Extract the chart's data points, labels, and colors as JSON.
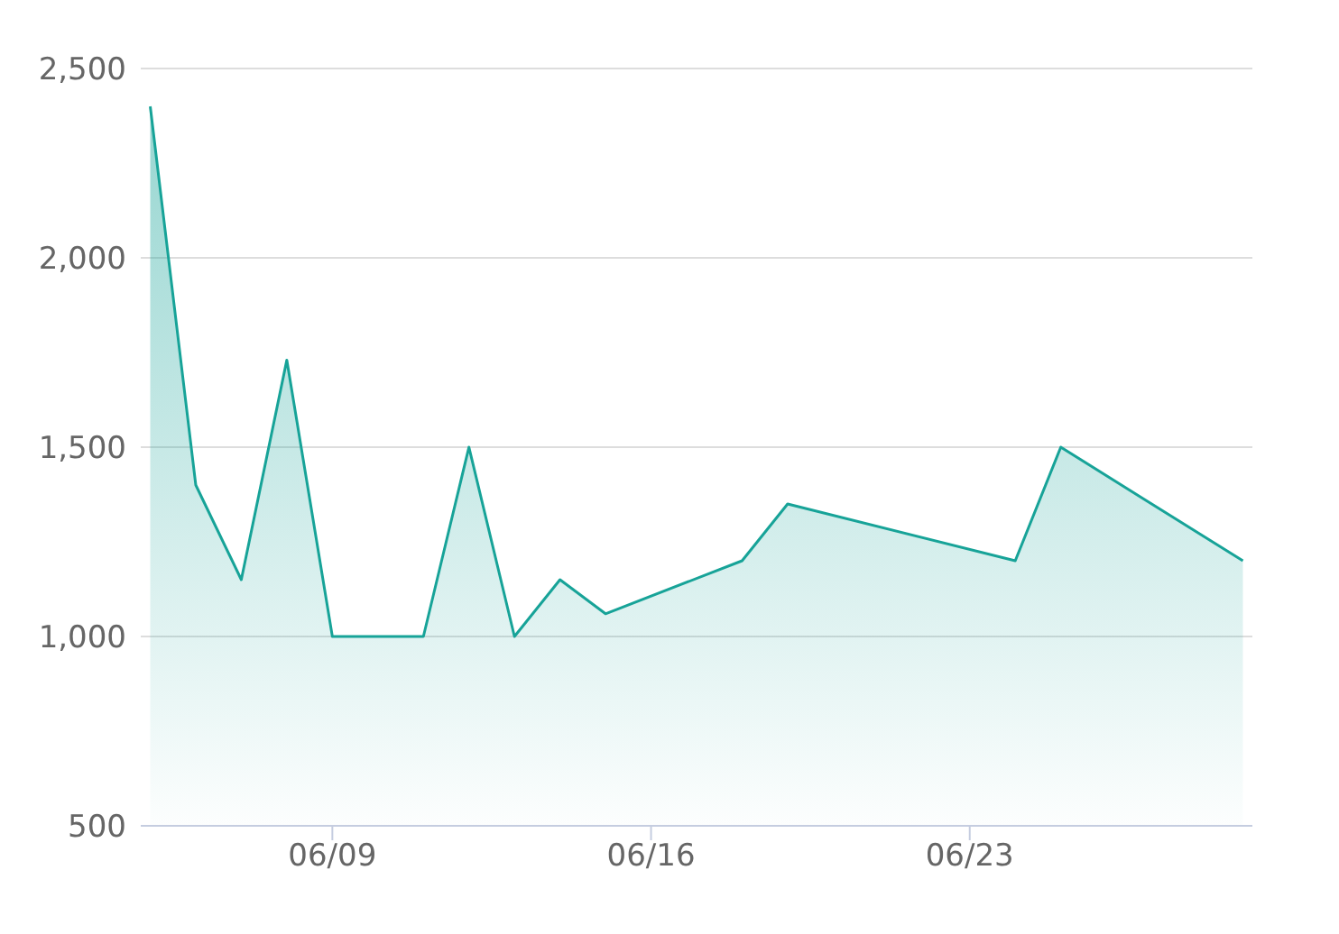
{
  "chart_data": {
    "type": "area",
    "x": [
      "--06-05",
      "--06-06",
      "--06-07",
      "--06-08",
      "--06-09",
      "--06-11",
      "--06-12",
      "--06-13",
      "--06-14",
      "--06-15",
      "--06-18",
      "--06-19",
      "--06-24",
      "--06-25",
      "--06-29"
    ],
    "series": [
      {
        "color": "#17a398",
        "values": [
          2400,
          1400,
          1150,
          1730,
          1000,
          1000,
          1500,
          1000,
          1150,
          1060,
          1200,
          1350,
          1200,
          1500,
          1200
        ]
      }
    ],
    "xlim": [
      "--06-04T19:00",
      "--06-29T05:00"
    ],
    "xticks": [
      {
        "value": "--06-09",
        "label": "06/09"
      },
      {
        "value": "--06-16",
        "label": "06/16"
      },
      {
        "value": "--06-23",
        "label": "06/23"
      }
    ],
    "ylim": [
      500,
      2500
    ],
    "yticks": [
      {
        "value": 500,
        "label": "500"
      },
      {
        "value": 1000,
        "label": "1,000"
      },
      {
        "value": 1500,
        "label": "1,500"
      },
      {
        "value": 2000,
        "label": "2,000"
      },
      {
        "value": 2500,
        "label": "2,500"
      }
    ],
    "grid": "y",
    "marker": "none",
    "legend": false
  }
}
